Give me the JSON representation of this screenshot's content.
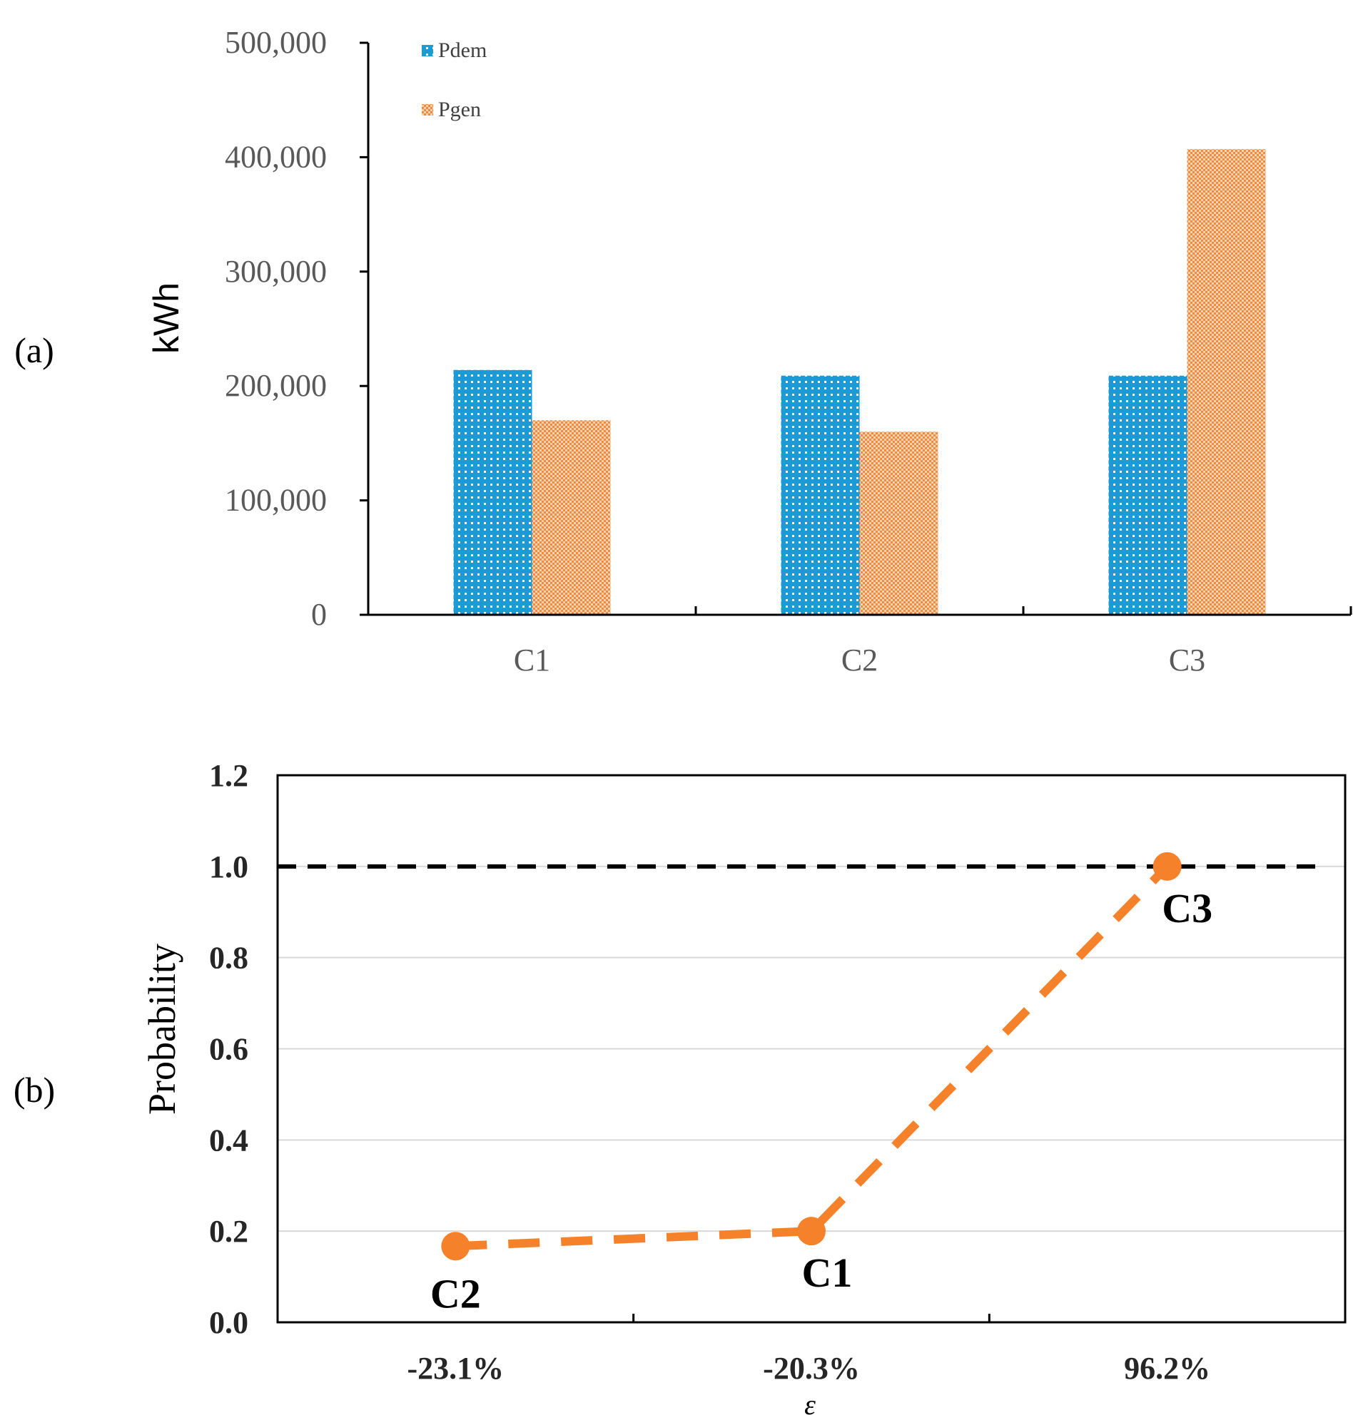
{
  "panels": {
    "a_label": "(a)",
    "b_label": "(b)"
  },
  "colors": {
    "pdem": "#1b9ad6",
    "pgen": "#f28b40",
    "line": "#f5822a",
    "axis": "#000000",
    "grid": "#d9d9d9",
    "reference": "#000000"
  },
  "chart_data": [
    {
      "id": "a",
      "type": "bar",
      "title": "",
      "ylabel": "kWh",
      "xlabel": "",
      "categories": [
        "C1",
        "C2",
        "C3"
      ],
      "series": [
        {
          "name": "Pdem",
          "values": [
            214000,
            209000,
            209000
          ]
        },
        {
          "name": "Pgen",
          "values": [
            170000,
            160000,
            407000
          ]
        }
      ],
      "ylim": [
        0,
        500000
      ],
      "yticks": [
        "0",
        "100,000",
        "200,000",
        "300,000",
        "400,000",
        "500,000"
      ],
      "ytick_values": [
        0,
        100000,
        200000,
        300000,
        400000,
        500000
      ],
      "legend": "top-left",
      "grid": false
    },
    {
      "id": "b",
      "type": "line",
      "title": "",
      "ylabel": "Probability",
      "xlabel": "ε",
      "categories": [
        "-23.1%",
        "-20.3%",
        "96.2%"
      ],
      "series": [
        {
          "name": "Probability",
          "values": [
            0.167,
            0.2,
            1.0
          ],
          "point_labels": [
            "C2",
            "C1",
            "C3"
          ]
        }
      ],
      "reference_line": 1.0,
      "ylim": [
        0,
        1.2
      ],
      "yticks": [
        "0.0",
        "0.2",
        "0.4",
        "0.6",
        "0.8",
        "1.0",
        "1.2"
      ],
      "ytick_values": [
        0,
        0.2,
        0.4,
        0.6,
        0.8,
        1.0,
        1.2
      ],
      "grid": true
    }
  ]
}
